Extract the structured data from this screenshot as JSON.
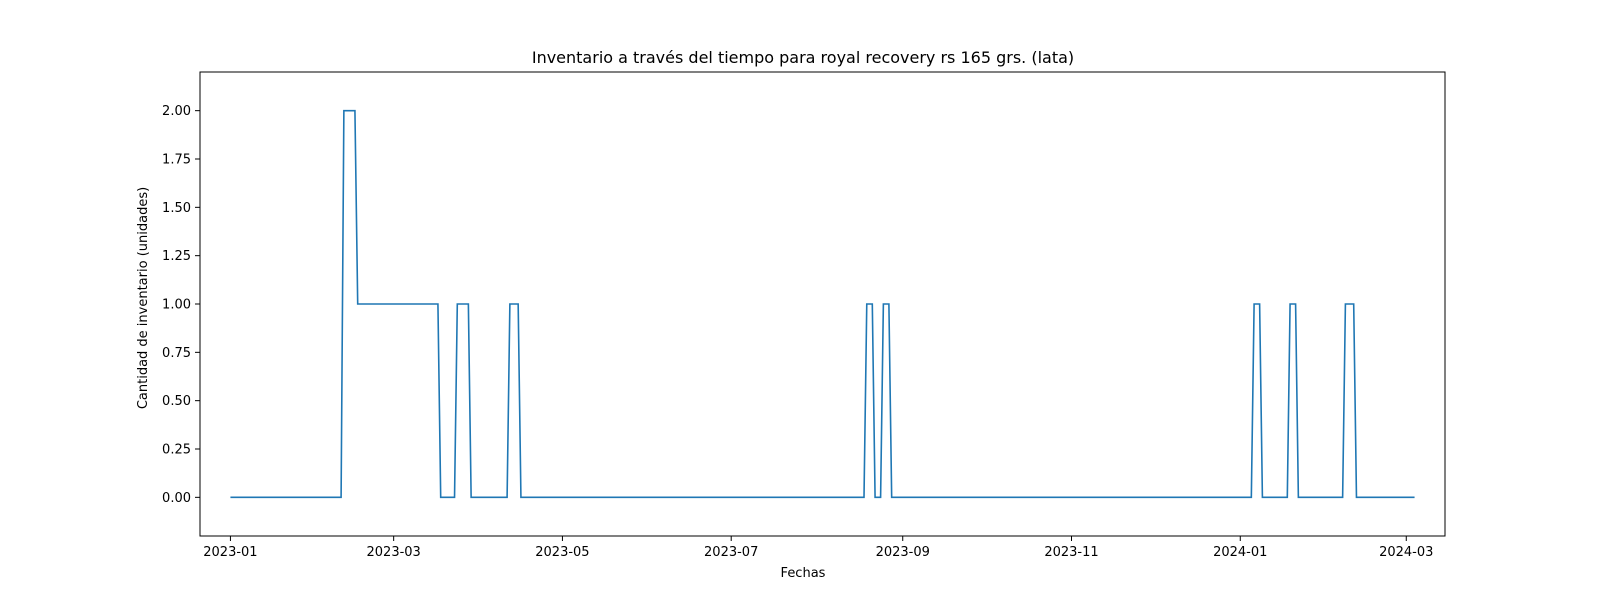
{
  "chart_data": {
    "type": "line",
    "title": "Inventario a través del tiempo para royal recovery rs 165 grs. (lata)",
    "xlabel": "Fechas",
    "ylabel": "Cantidad de inventario (unidades)",
    "x_type": "date",
    "xlim": [
      "2022-12-21",
      "2024-03-15"
    ],
    "ylim": [
      -0.2,
      2.2
    ],
    "x_ticks": [
      "2023-01-01",
      "2023-03-01",
      "2023-05-01",
      "2023-07-01",
      "2023-09-01",
      "2023-11-01",
      "2024-01-01",
      "2024-03-01"
    ],
    "x_tick_labels": [
      "2023-01",
      "2023-03",
      "2023-05",
      "2023-07",
      "2023-09",
      "2023-11",
      "2024-01",
      "2024-03"
    ],
    "y_ticks": [
      0,
      0.25,
      0.5,
      0.75,
      1.0,
      1.25,
      1.5,
      1.75,
      2.0
    ],
    "y_tick_labels": [
      "0.00",
      "0.25",
      "0.50",
      "0.75",
      "1.00",
      "1.25",
      "1.50",
      "1.75",
      "2.00"
    ],
    "grid": false,
    "color": "#1f77b4",
    "series": [
      {
        "x": [
          "2023-01-01",
          "2023-02-10",
          "2023-02-11",
          "2023-02-15",
          "2023-02-16",
          "2023-03-17",
          "2023-03-18",
          "2023-03-23",
          "2023-03-24",
          "2023-03-28",
          "2023-03-29",
          "2023-04-11",
          "2023-04-12",
          "2023-04-15",
          "2023-04-16",
          "2023-08-18",
          "2023-08-19",
          "2023-08-21",
          "2023-08-22",
          "2023-08-24",
          "2023-08-25",
          "2023-08-27",
          "2023-08-28",
          "2024-01-05",
          "2024-01-06",
          "2024-01-08",
          "2024-01-09",
          "2024-01-18",
          "2024-01-19",
          "2024-01-21",
          "2024-01-22",
          "2024-02-07",
          "2024-02-08",
          "2024-02-11",
          "2024-02-12",
          "2024-03-04"
        ],
        "y": [
          0,
          0,
          2,
          2,
          1,
          1,
          0,
          0,
          1,
          1,
          0,
          0,
          1,
          1,
          0,
          0,
          1,
          1,
          0,
          0,
          1,
          1,
          0,
          0,
          1,
          1,
          0,
          0,
          1,
          1,
          0,
          0,
          1,
          1,
          0,
          0
        ]
      }
    ]
  }
}
